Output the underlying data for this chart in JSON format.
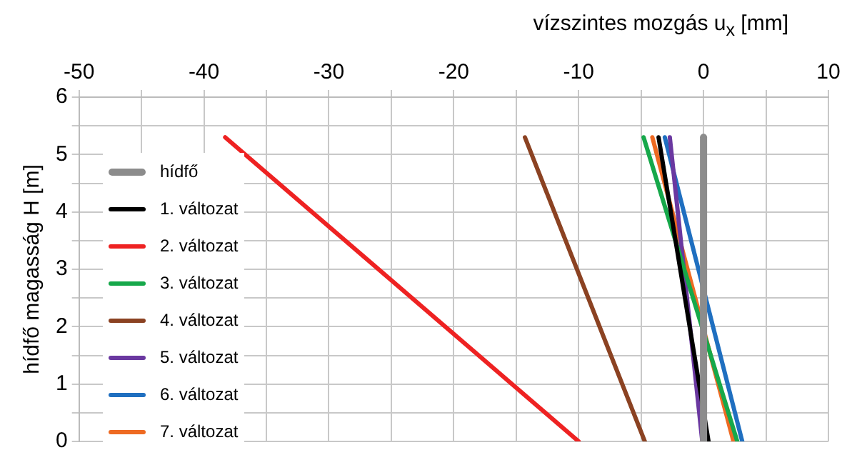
{
  "chart_data": {
    "type": "line",
    "xlabel": "vízszintes mozgás u$_{x}$ [mm]",
    "ylabel": "hídfő magasság H [m]",
    "xlim": [
      -50,
      10
    ],
    "xticks": [
      -50,
      {
        "value": -45,
        "label": null
      },
      -40,
      {
        "value": -35,
        "label": null
      },
      -30,
      {
        "value": -25,
        "label": null
      },
      -20,
      {
        "value": -15,
        "label": null
      },
      -10,
      {
        "value": -5,
        "label": null
      },
      0,
      {
        "value": 5,
        "label": null
      },
      10
    ],
    "ylim": [
      0,
      6
    ],
    "yticks": [
      0,
      {
        "value": 0.5,
        "label": null
      },
      1,
      {
        "value": 1.5,
        "label": null
      },
      2,
      {
        "value": 2.5,
        "label": null
      },
      3,
      {
        "value": 3.5,
        "label": null
      },
      4,
      {
        "value": 4.5,
        "label": null
      },
      5,
      {
        "value": 5.5,
        "label": null
      },
      6
    ],
    "grid": true,
    "legend": "left",
    "marker": "none",
    "line_style": "solid",
    "series": [
      {
        "name": "hídfő",
        "color": "#8c8c8c",
        "x": [
          0,
          0
        ],
        "values": [
          0,
          5.3
        ]
      },
      {
        "name": "1. változat",
        "color": "#000000",
        "x": [
          0.4,
          -3.6
        ],
        "values": [
          0,
          5.3
        ]
      },
      {
        "name": "2. változat",
        "color": "#ee2222",
        "x": [
          -10,
          -38.3
        ],
        "values": [
          0,
          5.3
        ]
      },
      {
        "name": "3. változat",
        "color": "#16a84a",
        "x": [
          2.7,
          -4.8
        ],
        "values": [
          0,
          5.3
        ]
      },
      {
        "name": "4. változat",
        "color": "#8b4222",
        "x": [
          -4.7,
          -14.3
        ],
        "values": [
          0,
          5.3
        ]
      },
      {
        "name": "5. változat",
        "color": "#6a38a0",
        "x": [
          -0.1,
          -2.7
        ],
        "values": [
          0,
          5.3
        ]
      },
      {
        "name": "6. változat",
        "color": "#1f6fc0",
        "x": [
          3.1,
          -3.1
        ],
        "values": [
          0,
          5.3
        ]
      },
      {
        "name": "7. változat",
        "color": "#ee6a22",
        "x": [
          2.4,
          -4.1
        ],
        "values": [
          0,
          5.3
        ]
      }
    ]
  }
}
